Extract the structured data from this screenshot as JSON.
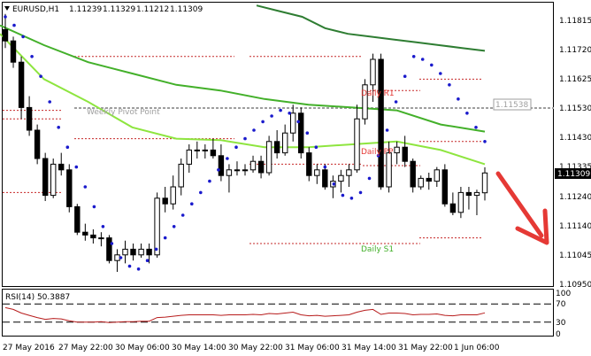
{
  "header": {
    "symbol": "EURUSD,H1",
    "open": "1.11239",
    "high": "1.11329",
    "low": "1.11212",
    "close": "1.11309"
  },
  "price_axis": {
    "ticks": [
      "1.11815",
      "1.11720",
      "1.11625",
      "1.11530",
      "1.11430",
      "1.11335",
      "1.11240",
      "1.11140",
      "1.11045",
      "1.10950"
    ],
    "current_price": "1.11309",
    "marker_price": "1.11538"
  },
  "pivots": {
    "weekly_pivot": "Weekly Pivot Point",
    "daily_r1": "Daily R1",
    "daily_pp": "Daily PP",
    "daily_s1": "Daily S1"
  },
  "rsi": {
    "label": "RSI(14) 50.3887",
    "ticks": [
      "100",
      "70",
      "30",
      "0"
    ]
  },
  "time_axis": [
    "27 May 2016",
    "27 May 22:00",
    "30 May 06:00",
    "30 May 14:00",
    "30 May 22:00",
    "31 May 06:00",
    "31 May 14:00",
    "31 May 22:00",
    "1 Jun 06:00"
  ],
  "colors": {
    "bull_candle": "#ffffff",
    "bear_candle": "#000000",
    "ma_dark": "#2e7d32",
    "ma_mid": "#43b02a",
    "ma_light": "#8ee53f",
    "psar": "#1a1acc",
    "pivot_line": "#c62828",
    "arrow": "#e53935",
    "rsi_line": "#b71c1c",
    "price_tag": "#000000"
  },
  "chart_data": {
    "type": "line",
    "symbol": "EURUSD",
    "timeframe": "H1",
    "ylim": [
      1.1091,
      1.1191
    ],
    "candles": [
      [
        1.11815,
        1.1187,
        1.1175,
        1.11775
      ],
      [
        1.11775,
        1.1179,
        1.1168,
        1.117
      ],
      [
        1.117,
        1.1172,
        1.115,
        1.1154
      ],
      [
        1.1154,
        1.1158,
        1.1144,
        1.1146
      ],
      [
        1.1146,
        1.1148,
        1.1134,
        1.1136
      ],
      [
        1.1136,
        1.1138,
        1.1121,
        1.1123
      ],
      [
        1.1123,
        1.1136,
        1.1122,
        1.1134
      ],
      [
        1.1134,
        1.1138,
        1.113,
        1.1132
      ],
      [
        1.1132,
        1.1134,
        1.1117,
        1.1119
      ],
      [
        1.1119,
        1.112,
        1.1109,
        1.111
      ],
      [
        1.111,
        1.1113,
        1.1107,
        1.1109
      ],
      [
        1.1109,
        1.1111,
        1.1106,
        1.1108
      ],
      [
        1.1108,
        1.111,
        1.1105,
        1.1108
      ],
      [
        1.1108,
        1.1109,
        1.1099,
        1.11
      ],
      [
        1.11,
        1.1104,
        1.1096,
        1.1102
      ],
      [
        1.1102,
        1.1107,
        1.1099,
        1.1104
      ],
      [
        1.1104,
        1.1106,
        1.11,
        1.1102
      ],
      [
        1.1102,
        1.1106,
        1.1101,
        1.1104
      ],
      [
        1.1104,
        1.1106,
        1.1099,
        1.1102
      ],
      [
        1.1102,
        1.1124,
        1.1101,
        1.1122
      ],
      [
        1.1122,
        1.1126,
        1.1117,
        1.112
      ],
      [
        1.112,
        1.113,
        1.1118,
        1.1126
      ],
      [
        1.1126,
        1.1136,
        1.1123,
        1.1134
      ],
      [
        1.1134,
        1.1141,
        1.1131,
        1.1139
      ],
      [
        1.1139,
        1.1142,
        1.1136,
        1.1139
      ],
      [
        1.1139,
        1.1141,
        1.1136,
        1.1139
      ],
      [
        1.1139,
        1.1143,
        1.1136,
        1.1137
      ],
      [
        1.1137,
        1.1141,
        1.1128,
        1.113
      ],
      [
        1.113,
        1.1134,
        1.1124,
        1.1132
      ],
      [
        1.1132,
        1.1135,
        1.113,
        1.1132
      ],
      [
        1.1132,
        1.1134,
        1.113,
        1.1132
      ],
      [
        1.1132,
        1.1137,
        1.1131,
        1.1135
      ],
      [
        1.1135,
        1.1137,
        1.1129,
        1.1131
      ],
      [
        1.1131,
        1.1144,
        1.113,
        1.1142
      ],
      [
        1.1142,
        1.1146,
        1.1136,
        1.1138
      ],
      [
        1.1138,
        1.1148,
        1.1137,
        1.1145
      ],
      [
        1.1145,
        1.1155,
        1.1142,
        1.1152
      ],
      [
        1.1152,
        1.1154,
        1.1136,
        1.1138
      ],
      [
        1.1138,
        1.114,
        1.1128,
        1.113
      ],
      [
        1.113,
        1.1134,
        1.1127,
        1.1132
      ],
      [
        1.1132,
        1.1134,
        1.1125,
        1.1126
      ],
      [
        1.1126,
        1.113,
        1.1122,
        1.1128
      ],
      [
        1.1128,
        1.1132,
        1.1124,
        1.113
      ],
      [
        1.113,
        1.1134,
        1.1126,
        1.1132
      ],
      [
        1.1132,
        1.1155,
        1.1131,
        1.115
      ],
      [
        1.115,
        1.1164,
        1.1148,
        1.1162
      ],
      [
        1.1162,
        1.1173,
        1.1156,
        1.1171
      ],
      [
        1.1171,
        1.1173,
        1.1125,
        1.1126
      ],
      [
        1.1126,
        1.1142,
        1.1124,
        1.1138
      ],
      [
        1.1138,
        1.1142,
        1.1134,
        1.114
      ],
      [
        1.114,
        1.1144,
        1.1133,
        1.1135
      ],
      [
        1.1135,
        1.1136,
        1.1124,
        1.1126
      ],
      [
        1.1126,
        1.113,
        1.1125,
        1.1129
      ],
      [
        1.1129,
        1.1131,
        1.1125,
        1.1128
      ],
      [
        1.1128,
        1.1133,
        1.1126,
        1.1132
      ],
      [
        1.1132,
        1.1134,
        1.1119,
        1.112
      ],
      [
        1.112,
        1.1124,
        1.1116,
        1.1117
      ],
      [
        1.1117,
        1.1126,
        1.1115,
        1.1124
      ],
      [
        1.1124,
        1.1126,
        1.1118,
        1.1123
      ],
      [
        1.1123,
        1.1125,
        1.1116,
        1.1124
      ],
      [
        1.11239,
        1.11329,
        1.11212,
        1.11309
      ]
    ],
    "series": [
      {
        "values": [
          1.119,
          1.1188,
          1.1186,
          1.1182,
          1.118,
          1.1179,
          1.1178,
          1.1177,
          1.1176,
          1.1175,
          1.1174
        ]
      },
      {
        "values": [
          1.1183,
          1.1176,
          1.117,
          1.1166,
          1.1162,
          1.116,
          1.1157,
          1.1155,
          1.1154,
          1.1153,
          1.1148,
          1.11455
        ]
      },
      {
        "values": [
          1.118,
          1.1164,
          1.1156,
          1.1147,
          1.1143,
          1.11425,
          1.114,
          1.114,
          1.1141,
          1.1142,
          1.1139,
          1.1134
        ]
      }
    ],
    "psar": [
      1.1186,
      1.1183,
      1.1179,
      1.1172,
      1.1165,
      1.1156,
      1.1147,
      1.114,
      1.1133,
      1.1126,
      1.1119,
      1.1112,
      1.1106,
      1.1101,
      1.1098,
      1.1097,
      1.11,
      1.1104,
      1.1108,
      1.1112,
      1.1116,
      1.112,
      1.1124,
      1.1128,
      1.1132,
      1.1136,
      1.114,
      1.1143,
      1.1146,
      1.1149,
      1.1151,
      1.1153,
      1.1152,
      1.1149,
      1.1145,
      1.114,
      1.1133,
      1.1127,
      1.1123,
      1.1122,
      1.1124,
      1.1129,
      1.1137,
      1.1146,
      1.1156,
      1.1165,
      1.1172,
      1.1171,
      1.1169,
      1.1166,
      1.1162,
      1.1157,
      1.1152,
      1.1147,
      1.1142
    ],
    "levels": {
      "weekly_pivot": 1.11538,
      "daily_r1": 1.116,
      "daily_pp": 1.11335,
      "daily_s1": 1.1106
    },
    "rsi": [
      62,
      58,
      50,
      45,
      40,
      36,
      38,
      37,
      33,
      30,
      30,
      30,
      31,
      29,
      30,
      31,
      31,
      32,
      32,
      40,
      41,
      43,
      45,
      46,
      46,
      46,
      46,
      45,
      46,
      46,
      46,
      47,
      46,
      49,
      48,
      50,
      52,
      46,
      44,
      45,
      43,
      44,
      45,
      46,
      52,
      56,
      58,
      47,
      50,
      50,
      49,
      46,
      47,
      47,
      48,
      45,
      44,
      46,
      46,
      46,
      50.3887
    ]
  }
}
